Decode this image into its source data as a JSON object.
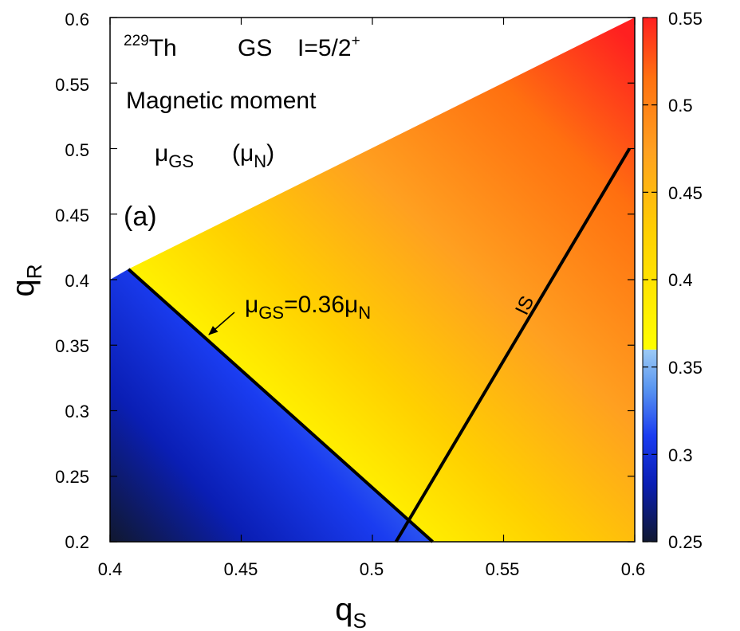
{
  "chart_data": {
    "type": "heatmap",
    "title": "229Th GS I=5/2+",
    "title_parts": {
      "mass": "229",
      "element": "Th",
      "state": "GS",
      "spin": "I=5/2",
      "parity": "+"
    },
    "subtitle": "Magnetic moment",
    "quantity": {
      "symbol": "μ",
      "sub": "GS",
      "unit_open": "(μ",
      "unit_sub": "N",
      "unit_close": ")"
    },
    "panel_label": "(a)",
    "xlabel": {
      "base": "q",
      "sub": "S"
    },
    "ylabel": {
      "base": "q",
      "sub": "R"
    },
    "xlim": [
      0.4,
      0.6
    ],
    "ylim": [
      0.2,
      0.6
    ],
    "x_ticks": [
      "0.4",
      "0.45",
      "0.5",
      "0.55",
      "0.6"
    ],
    "y_ticks": [
      "0.2",
      "0.25",
      "0.3",
      "0.35",
      "0.4",
      "0.45",
      "0.5",
      "0.55",
      "0.6"
    ],
    "colorbar": {
      "range": [
        0.25,
        0.55
      ],
      "ticks": [
        "0.25",
        "0.3",
        "0.35",
        "0.4",
        "0.45",
        "0.5",
        "0.55"
      ],
      "split_value": 0.36,
      "low_colors": [
        "#101830",
        "#0a1eb4",
        "#1a3cf0",
        "#5a96f0",
        "#9ccaf5"
      ],
      "high_colors": [
        "#ffff00",
        "#ffd000",
        "#ffa020",
        "#ff7010",
        "#ff2020"
      ]
    },
    "region": {
      "description": "data defined where qR <= qS",
      "vertices": [
        [
          0.4,
          0.2
        ],
        [
          0.6,
          0.2
        ],
        [
          0.6,
          0.6
        ],
        [
          0.4,
          0.4
        ]
      ]
    },
    "field_samples": [
      {
        "qS": 0.4,
        "qR": 0.2,
        "value": 0.26
      },
      {
        "qS": 0.4,
        "qR": 0.4,
        "value": 0.35
      },
      {
        "qS": 0.52,
        "qR": 0.2,
        "value": 0.36
      },
      {
        "qS": 0.6,
        "qR": 0.2,
        "value": 0.45
      },
      {
        "qS": 0.6,
        "qR": 0.6,
        "value": 0.54
      }
    ],
    "contour": {
      "label_symbol": "μ",
      "label_sub": "GS",
      "label_eq": "=0.36μ",
      "label_unit_sub": "N",
      "points": [
        [
          0.407,
          0.408
        ],
        [
          0.523,
          0.2
        ]
      ]
    },
    "is_line": {
      "label": "IS",
      "points": [
        [
          0.509,
          0.2
        ],
        [
          0.598,
          0.5
        ]
      ]
    }
  }
}
